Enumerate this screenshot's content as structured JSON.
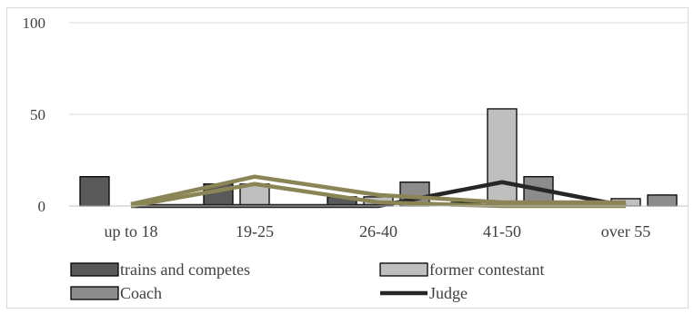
{
  "chart_data": {
    "type": "bar",
    "categories": [
      "up to 18",
      "19-25",
      "26-40",
      "41-50",
      "over 55"
    ],
    "series": [
      {
        "name": "trains and competes",
        "kind": "bar",
        "color": "#595959",
        "values": [
          16,
          12,
          5,
          2,
          0
        ]
      },
      {
        "name": "former contestant",
        "kind": "bar",
        "color": "#bfbfbf",
        "values": [
          0,
          12,
          5,
          53,
          4
        ]
      },
      {
        "name": "Coach",
        "kind": "bar",
        "color": "#8c8c8c",
        "values": [
          0,
          0,
          13,
          16,
          6
        ]
      },
      {
        "name": "Judge",
        "kind": "line",
        "color": "#262626",
        "values": [
          0,
          0,
          0,
          13,
          0
        ]
      },
      {
        "name": "",
        "kind": "line",
        "color": "#8b8455",
        "values": [
          1,
          16,
          6,
          2,
          2
        ]
      },
      {
        "name": "",
        "kind": "line",
        "color": "#8b8455",
        "values": [
          0,
          12,
          2,
          0,
          0
        ]
      }
    ],
    "yticks": [
      "0",
      "50",
      "100"
    ],
    "ylim": [
      0,
      100
    ],
    "grid": true,
    "legend_position": "bottom"
  }
}
